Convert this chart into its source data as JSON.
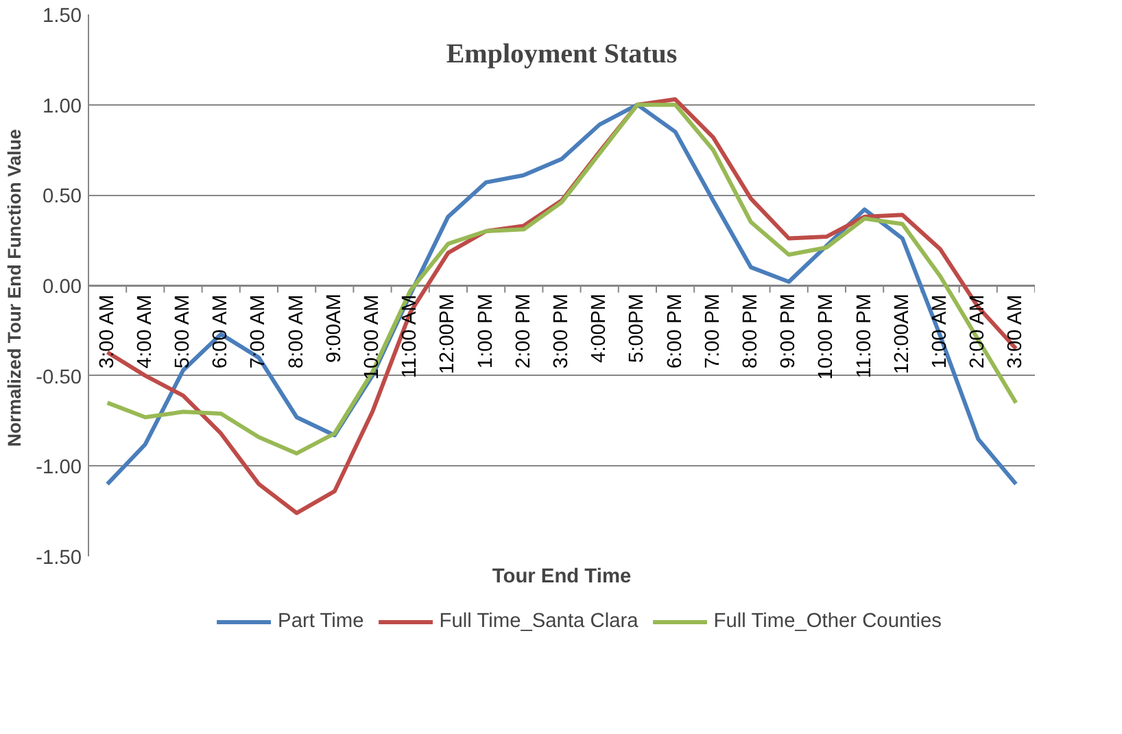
{
  "chart_data": {
    "type": "line",
    "title": "Employment Status",
    "xlabel": "Tour End Time",
    "ylabel": "Normalized Tour End  Function Value",
    "categories": [
      "3:00 AM",
      "4:00 AM",
      "5:00 AM",
      "6:00 AM",
      "7:00 AM",
      "8:00 AM",
      "9:00AM",
      "10:00 AM",
      "11:00 AM",
      "12:00PM",
      "1:00 PM",
      "2:00 PM",
      "3:00 PM",
      "4:00PM",
      "5:00PM",
      "6:00 PM",
      "7:00 PM",
      "8:00 PM",
      "9:00 PM",
      "10:00 PM",
      "11:00 PM",
      "12:00AM",
      "1:00 AM",
      "2:00 AM",
      "3:00 AM"
    ],
    "series": [
      {
        "name": "Part Time",
        "color": "#4a7ebb",
        "values": [
          -1.1,
          -0.88,
          -0.47,
          -0.27,
          -0.4,
          -0.73,
          -0.83,
          -0.5,
          -0.05,
          0.38,
          0.57,
          0.61,
          0.7,
          0.89,
          1.0,
          0.85,
          0.47,
          0.1,
          0.02,
          0.22,
          0.42,
          0.26,
          -0.28,
          -0.85,
          -1.1
        ]
      },
      {
        "name": "Full Time_Santa Clara",
        "color": "#be4b48",
        "values": [
          -0.37,
          -0.5,
          -0.61,
          -0.82,
          -1.1,
          -1.26,
          -1.14,
          -0.7,
          -0.15,
          0.18,
          0.3,
          0.33,
          0.47,
          0.74,
          1.0,
          1.03,
          0.82,
          0.48,
          0.26,
          0.27,
          0.38,
          0.39,
          0.2,
          -0.12,
          -0.35
        ]
      },
      {
        "name": "Full Time_Other Counties",
        "color": "#98b954",
        "values": [
          -0.65,
          -0.73,
          -0.7,
          -0.71,
          -0.84,
          -0.93,
          -0.82,
          -0.48,
          -0.03,
          0.23,
          0.3,
          0.31,
          0.46,
          0.73,
          1.0,
          1.0,
          0.75,
          0.35,
          0.17,
          0.21,
          0.37,
          0.34,
          0.05,
          -0.3,
          -0.65
        ]
      }
    ],
    "ylim": [
      -1.5,
      1.5
    ],
    "yticks": [
      {
        "value": -1.5,
        "label": "-1.50"
      },
      {
        "value": -1,
        "label": "-1.00"
      },
      {
        "value": -0.5,
        "label": "-0.50"
      },
      {
        "value": 0,
        "label": "0.00"
      },
      {
        "value": 0.5,
        "label": "0.50"
      },
      {
        "value": 1,
        "label": "1.00"
      },
      {
        "value": 1.5,
        "label": "1.50"
      }
    ],
    "grid": "y",
    "legend": "bottom",
    "marker": "none",
    "line_style": "solid"
  }
}
